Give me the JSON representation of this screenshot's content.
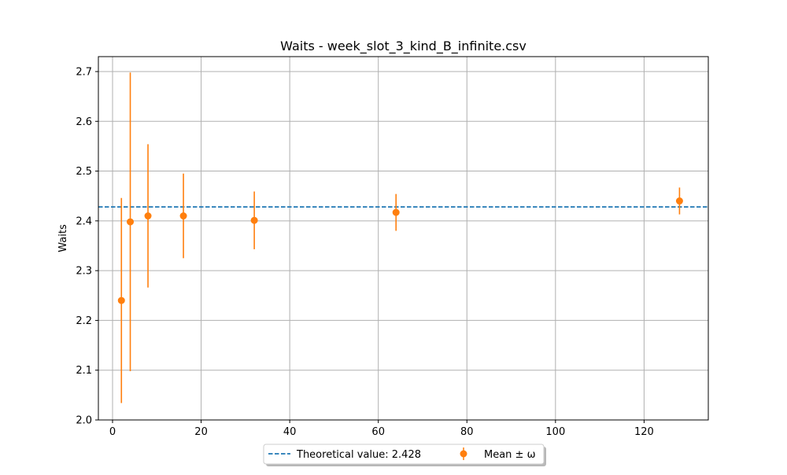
{
  "chart_data": {
    "type": "scatter",
    "title": "Waits - week_slot_3_kind_B_infinite.csv",
    "xlabel": "",
    "ylabel": "Waits",
    "xlim": [
      -3.2,
      134.5
    ],
    "ylim": [
      2.0,
      2.73
    ],
    "x_ticks": [
      0,
      20,
      40,
      60,
      80,
      100,
      120
    ],
    "y_ticks": [
      2.0,
      2.1,
      2.2,
      2.3,
      2.4,
      2.5,
      2.6,
      2.7
    ],
    "grid": true,
    "legend_position": "bottom-center",
    "reference_line": {
      "label": "Theoretical value: 2.428",
      "y": 2.428,
      "color": "#1f77b4",
      "style": "dashed"
    },
    "series": [
      {
        "name": "Mean ± ω",
        "color": "#ff7f0e",
        "points": [
          {
            "x": 2,
            "y": 2.24,
            "err": 0.206
          },
          {
            "x": 4,
            "y": 2.398,
            "err": 0.3
          },
          {
            "x": 8,
            "y": 2.41,
            "err": 0.144
          },
          {
            "x": 16,
            "y": 2.41,
            "err": 0.085
          },
          {
            "x": 32,
            "y": 2.401,
            "err": 0.058
          },
          {
            "x": 64,
            "y": 2.417,
            "err": 0.037
          },
          {
            "x": 128,
            "y": 2.44,
            "err": 0.027
          }
        ]
      }
    ]
  }
}
